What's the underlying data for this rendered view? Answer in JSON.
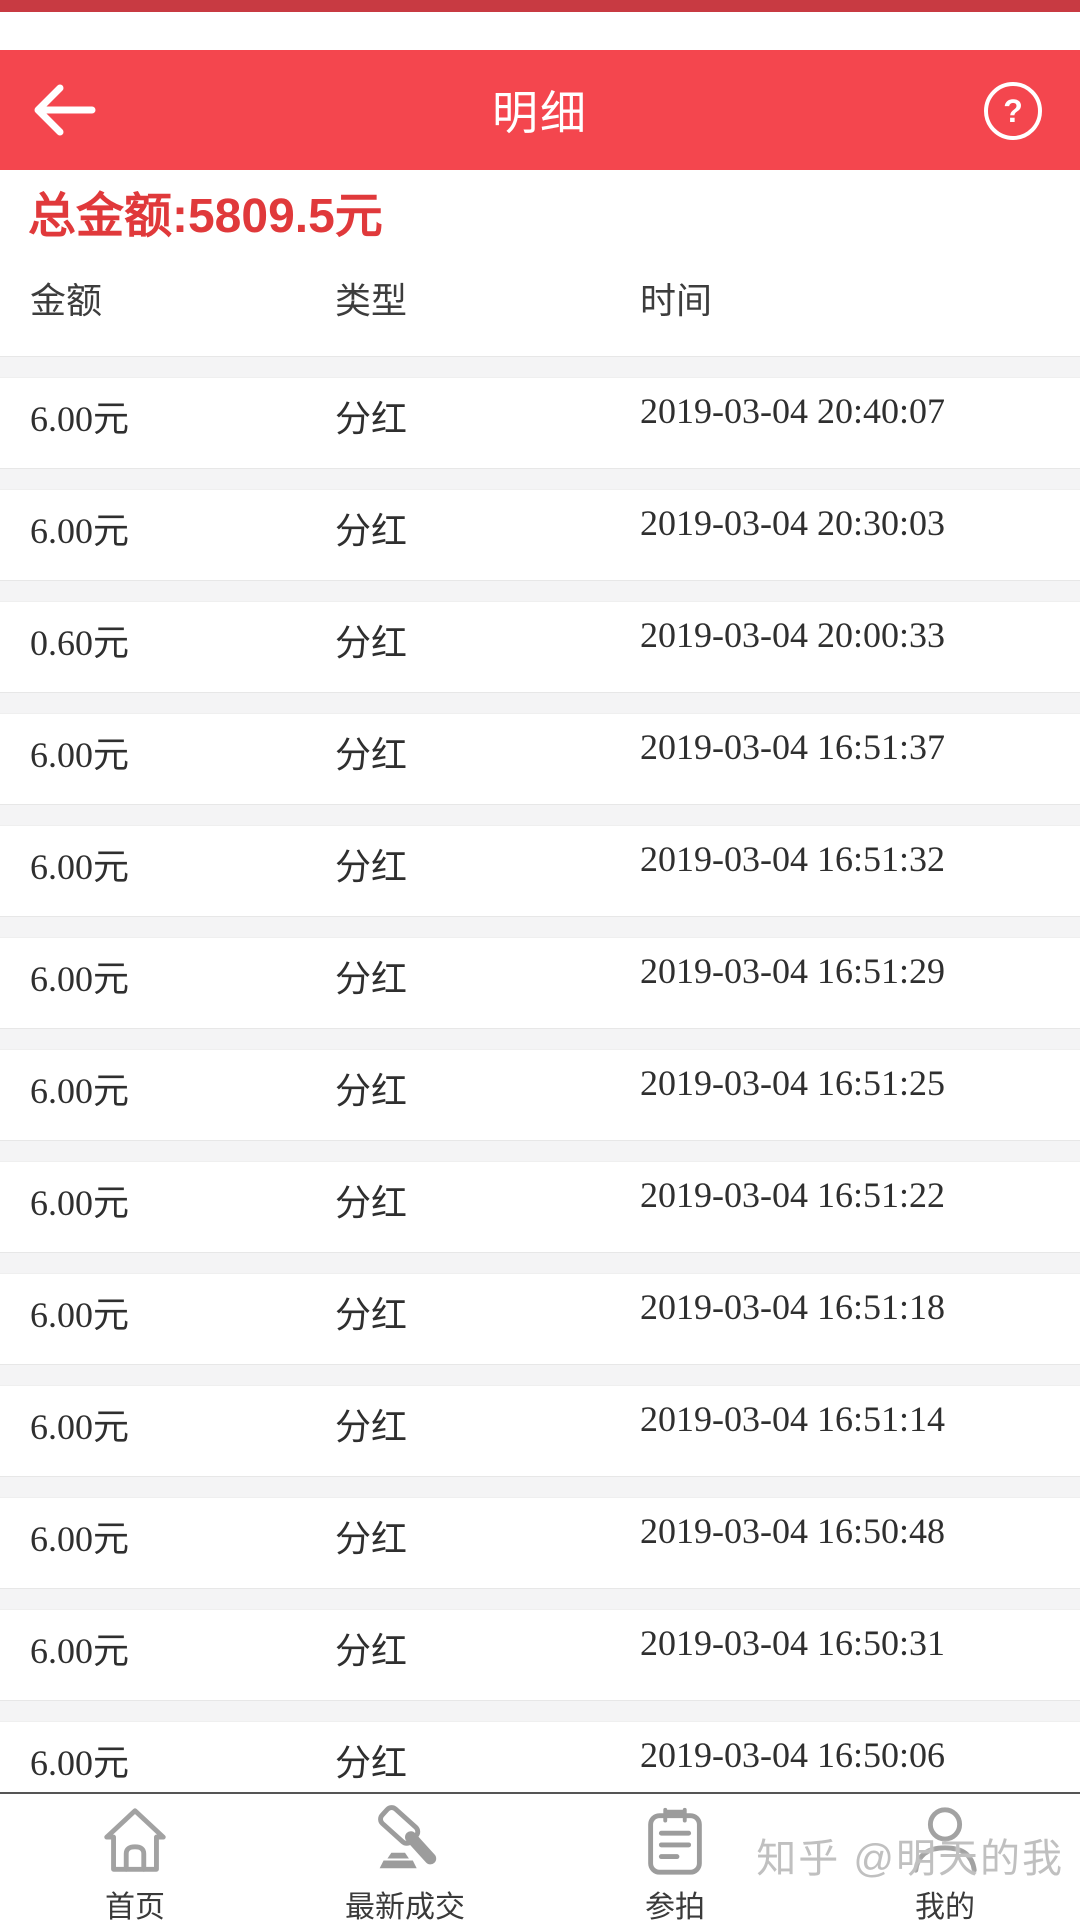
{
  "header": {
    "title": "明细",
    "help_label": "?"
  },
  "summary": {
    "total_text": "总金额:5809.5元"
  },
  "table": {
    "columns": [
      "金额",
      "类型",
      "时间"
    ],
    "rows": [
      {
        "amount": "6.00元",
        "type": "分红",
        "time": "2019-03-04 20:40:07"
      },
      {
        "amount": "6.00元",
        "type": "分红",
        "time": "2019-03-04 20:30:03"
      },
      {
        "amount": "0.60元",
        "type": "分红",
        "time": "2019-03-04 20:00:33"
      },
      {
        "amount": "6.00元",
        "type": "分红",
        "time": "2019-03-04 16:51:37"
      },
      {
        "amount": "6.00元",
        "type": "分红",
        "time": "2019-03-04 16:51:32"
      },
      {
        "amount": "6.00元",
        "type": "分红",
        "time": "2019-03-04 16:51:29"
      },
      {
        "amount": "6.00元",
        "type": "分红",
        "time": "2019-03-04 16:51:25"
      },
      {
        "amount": "6.00元",
        "type": "分红",
        "time": "2019-03-04 16:51:22"
      },
      {
        "amount": "6.00元",
        "type": "分红",
        "time": "2019-03-04 16:51:18"
      },
      {
        "amount": "6.00元",
        "type": "分红",
        "time": "2019-03-04 16:51:14"
      },
      {
        "amount": "6.00元",
        "type": "分红",
        "time": "2019-03-04 16:50:48"
      },
      {
        "amount": "6.00元",
        "type": "分红",
        "time": "2019-03-04 16:50:31"
      },
      {
        "amount": "6.00元",
        "type": "分红",
        "time": "2019-03-04 16:50:06"
      }
    ]
  },
  "tabbar": {
    "items": [
      {
        "label": "首页",
        "icon": "home-icon"
      },
      {
        "label": "最新成交",
        "icon": "gavel-icon"
      },
      {
        "label": "参拍",
        "icon": "clipboard-icon"
      },
      {
        "label": "我的",
        "icon": "person-icon"
      }
    ]
  },
  "watermark": {
    "text": "知乎 @明天的我"
  },
  "colors": {
    "header_red": "#f4464e",
    "top_strip_red": "#c83a42",
    "total_red": "#e0393b",
    "separator_gray": "#f4f4f5",
    "icon_gray": "#a2a2a2"
  }
}
